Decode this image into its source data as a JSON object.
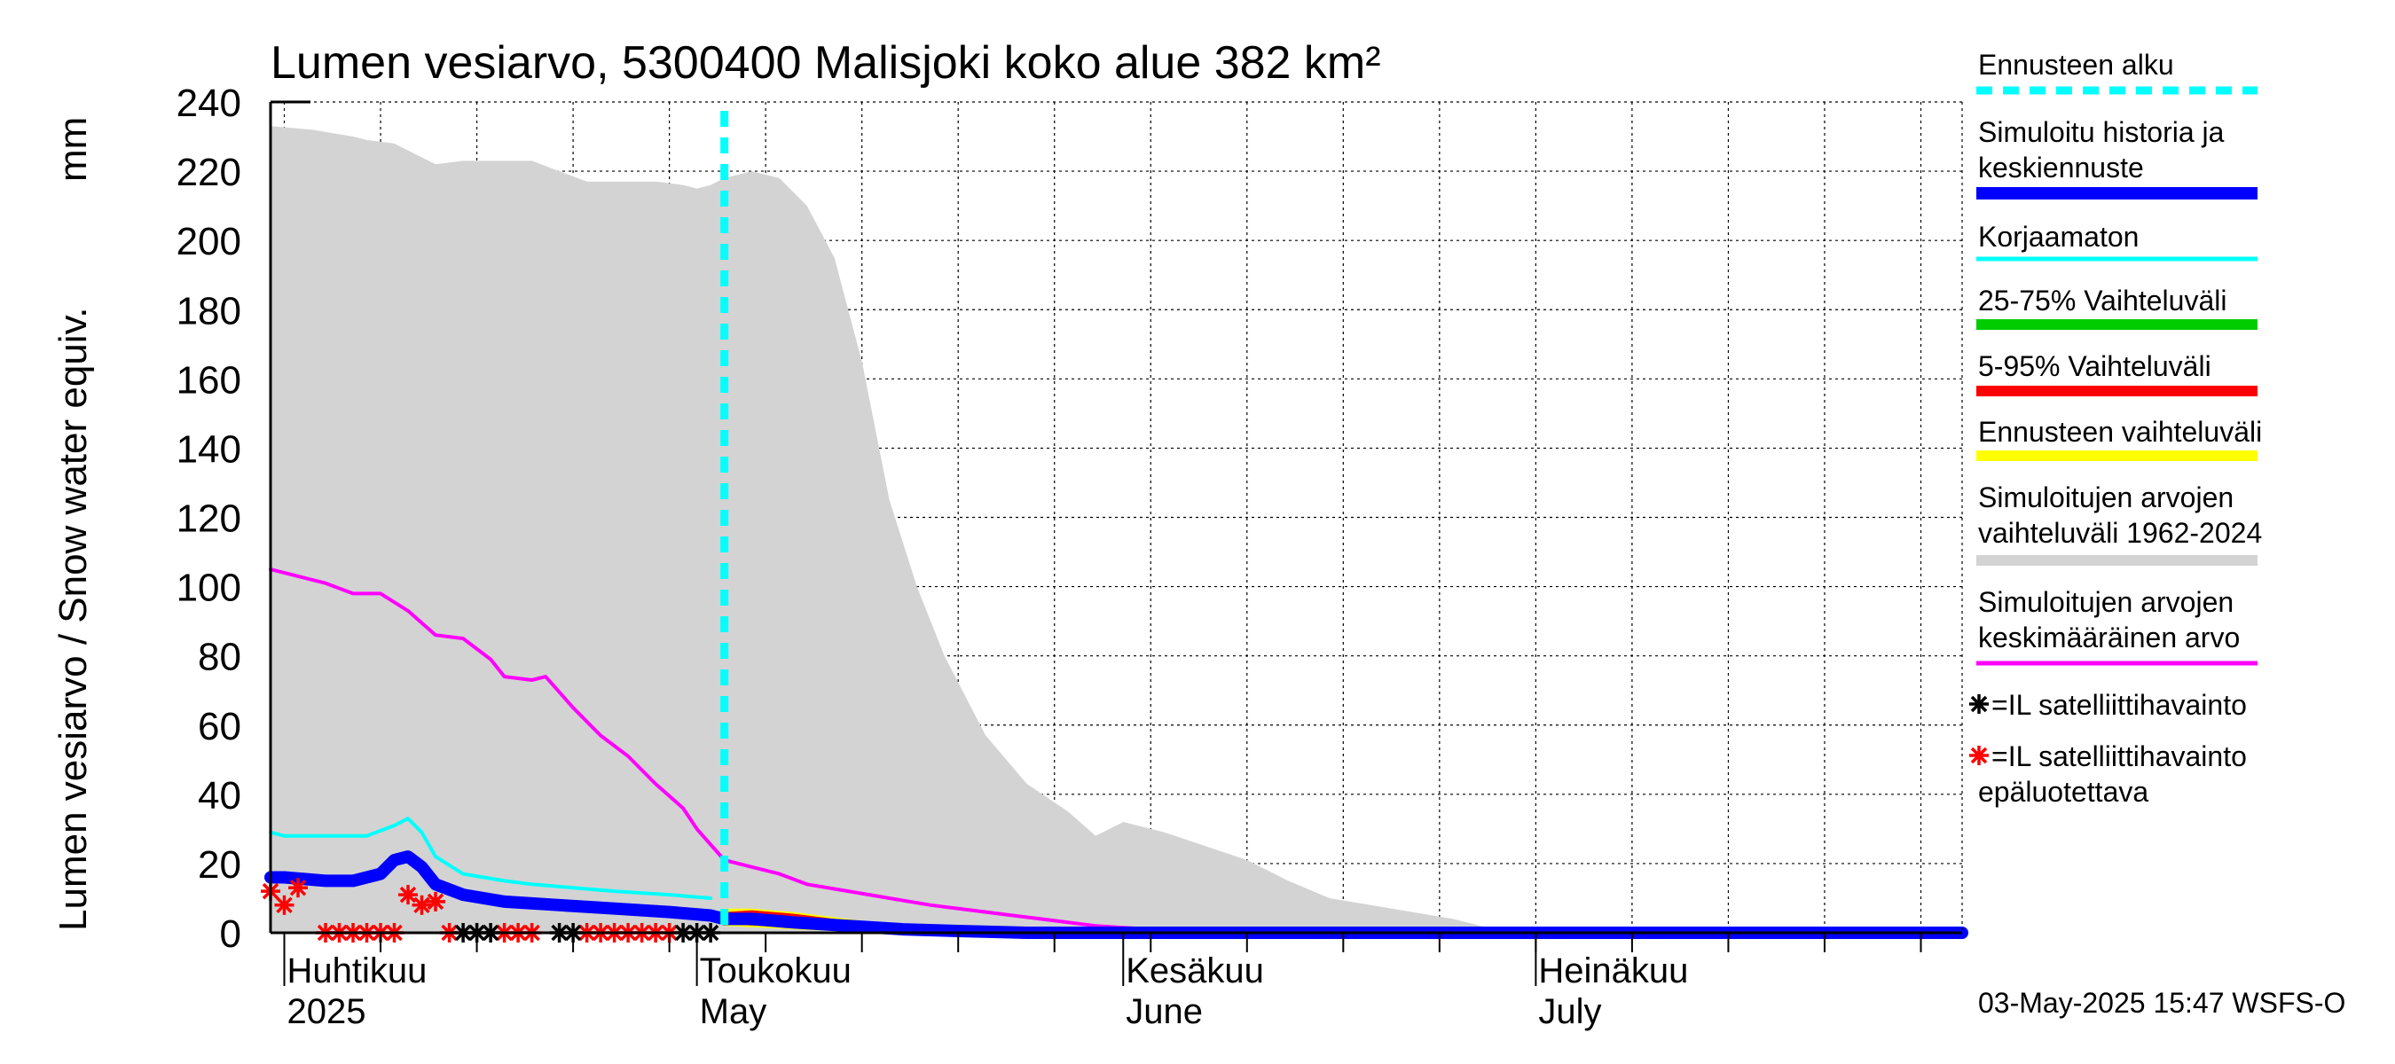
{
  "chart_data": {
    "type": "area",
    "title": "Lumen vesiarvo, 5300400 Malisjoki koko alue 382 km²",
    "ylabel": "Lumen vesiarvo / Snow water equiv.",
    "yunit": "mm",
    "ylim": [
      0,
      240
    ],
    "yticks": [
      0,
      20,
      40,
      60,
      80,
      100,
      120,
      140,
      160,
      180,
      200,
      220,
      240
    ],
    "xlim": [
      "2025-03-31",
      "2025-08-01"
    ],
    "grid": true,
    "x_labels": [
      {
        "date": "2025-04-01",
        "line1": "Huhtikuu",
        "line2": "2025"
      },
      {
        "date": "2025-05-01",
        "line1": "Toukokuu",
        "line2": "May"
      },
      {
        "date": "2025-06-01",
        "line1": "Kesäkuu",
        "line2": "June"
      },
      {
        "date": "2025-07-01",
        "line1": "Heinäkuu",
        "line2": "July"
      }
    ],
    "forecast_start": "2025-05-03",
    "series": [
      {
        "name": "Simuloitujen arvojen vaihteluväli 1962-2024",
        "kind": "band",
        "color": "#d3d3d3",
        "upper": [
          [
            "2025-03-31",
            233
          ],
          [
            "2025-04-03",
            232
          ],
          [
            "2025-04-06",
            230
          ],
          [
            "2025-04-07",
            229
          ],
          [
            "2025-04-09",
            228
          ],
          [
            "2025-04-11",
            224
          ],
          [
            "2025-04-12",
            222
          ],
          [
            "2025-04-14",
            223
          ],
          [
            "2025-04-19",
            223
          ],
          [
            "2025-04-21",
            220
          ],
          [
            "2025-04-23",
            217
          ],
          [
            "2025-04-28",
            217
          ],
          [
            "2025-04-30",
            216
          ],
          [
            "2025-05-01",
            215
          ],
          [
            "2025-05-02",
            216
          ],
          [
            "2025-05-03",
            218
          ],
          [
            "2025-05-05",
            220
          ],
          [
            "2025-05-07",
            218
          ],
          [
            "2025-05-09",
            210
          ],
          [
            "2025-05-11",
            195
          ],
          [
            "2025-05-13",
            165
          ],
          [
            "2025-05-15",
            125
          ],
          [
            "2025-05-17",
            100
          ],
          [
            "2025-05-19",
            80
          ],
          [
            "2025-05-22",
            57
          ],
          [
            "2025-05-25",
            43
          ],
          [
            "2025-05-28",
            35
          ],
          [
            "2025-05-30",
            28
          ],
          [
            "2025-06-01",
            32
          ],
          [
            "2025-06-04",
            29
          ],
          [
            "2025-06-07",
            25
          ],
          [
            "2025-06-10",
            21
          ],
          [
            "2025-06-13",
            15
          ],
          [
            "2025-06-16",
            10
          ],
          [
            "2025-06-19",
            8
          ],
          [
            "2025-06-22",
            6
          ],
          [
            "2025-06-25",
            4
          ],
          [
            "2025-06-27",
            2
          ],
          [
            "2025-06-28",
            1
          ],
          [
            "2025-07-02",
            0
          ],
          [
            "2025-08-01",
            0
          ]
        ],
        "lower": [
          [
            "2025-03-31",
            0
          ],
          [
            "2025-08-01",
            0
          ]
        ]
      },
      {
        "name": "Ennusteen vaihteluväli",
        "kind": "band",
        "color": "#ffff00",
        "upper": [
          [
            "2025-05-03",
            7
          ],
          [
            "2025-05-05",
            7
          ],
          [
            "2025-05-08",
            6
          ],
          [
            "2025-05-12",
            4
          ],
          [
            "2025-05-16",
            2
          ],
          [
            "2025-05-20",
            0.5
          ],
          [
            "2025-05-22",
            0
          ]
        ],
        "lower": [
          [
            "2025-05-03",
            2
          ],
          [
            "2025-05-08",
            1
          ],
          [
            "2025-05-14",
            0
          ],
          [
            "2025-05-22",
            0
          ]
        ]
      },
      {
        "name": "5-95% Vaihteluväli",
        "kind": "band",
        "color": "#ff0000",
        "upper": [
          [
            "2025-05-03",
            6
          ],
          [
            "2025-05-05",
            6.5
          ],
          [
            "2025-05-08",
            5.5
          ],
          [
            "2025-05-12",
            3.5
          ],
          [
            "2025-05-16",
            1.5
          ],
          [
            "2025-05-20",
            0.3
          ],
          [
            "2025-05-22",
            0
          ]
        ],
        "lower": [
          [
            "2025-05-03",
            2.5
          ],
          [
            "2025-05-08",
            1.5
          ],
          [
            "2025-05-14",
            0.2
          ],
          [
            "2025-05-22",
            0
          ]
        ]
      },
      {
        "name": "25-75% Vaihteluväli",
        "kind": "band",
        "color": "#00cc00",
        "upper": [
          [
            "2025-05-03",
            4.5
          ],
          [
            "2025-05-08",
            4
          ],
          [
            "2025-05-12",
            2.5
          ],
          [
            "2025-05-16",
            1
          ],
          [
            "2025-05-20",
            0
          ]
        ],
        "lower": [
          [
            "2025-05-03",
            3
          ],
          [
            "2025-05-08",
            2
          ],
          [
            "2025-05-12",
            1
          ],
          [
            "2025-05-20",
            0
          ]
        ]
      },
      {
        "name": "Simuloitujen arvojen keskimääräinen arvo",
        "kind": "line",
        "color": "#ff00ff",
        "points": [
          [
            "2025-03-31",
            105
          ],
          [
            "2025-04-02",
            103
          ],
          [
            "2025-04-04",
            101
          ],
          [
            "2025-04-06",
            98
          ],
          [
            "2025-04-08",
            98
          ],
          [
            "2025-04-10",
            93
          ],
          [
            "2025-04-12",
            86
          ],
          [
            "2025-04-14",
            85
          ],
          [
            "2025-04-16",
            79
          ],
          [
            "2025-04-17",
            74
          ],
          [
            "2025-04-19",
            73
          ],
          [
            "2025-04-20",
            74
          ],
          [
            "2025-04-22",
            65
          ],
          [
            "2025-04-24",
            57
          ],
          [
            "2025-04-26",
            51
          ],
          [
            "2025-04-28",
            43
          ],
          [
            "2025-04-30",
            36
          ],
          [
            "2025-05-01",
            30
          ],
          [
            "2025-05-03",
            21
          ],
          [
            "2025-05-05",
            19
          ],
          [
            "2025-05-07",
            17
          ],
          [
            "2025-05-09",
            14
          ],
          [
            "2025-05-12",
            12
          ],
          [
            "2025-05-15",
            10
          ],
          [
            "2025-05-18",
            8
          ],
          [
            "2025-05-22",
            6
          ],
          [
            "2025-05-26",
            4
          ],
          [
            "2025-05-30",
            2
          ],
          [
            "2025-06-03",
            1
          ],
          [
            "2025-06-08",
            0.3
          ],
          [
            "2025-06-12",
            0
          ],
          [
            "2025-08-01",
            0
          ]
        ]
      },
      {
        "name": "Korjaamaton",
        "kind": "line",
        "color": "#00ffff",
        "points": [
          [
            "2025-03-31",
            29
          ],
          [
            "2025-04-01",
            28
          ],
          [
            "2025-04-05",
            28
          ],
          [
            "2025-04-07",
            28
          ],
          [
            "2025-04-09",
            31
          ],
          [
            "2025-04-10",
            33
          ],
          [
            "2025-04-11",
            29
          ],
          [
            "2025-04-12",
            22
          ],
          [
            "2025-04-14",
            17
          ],
          [
            "2025-04-17",
            15
          ],
          [
            "2025-04-19",
            14
          ],
          [
            "2025-04-22",
            13
          ],
          [
            "2025-04-25",
            12
          ],
          [
            "2025-04-29",
            11
          ],
          [
            "2025-05-02",
            10
          ]
        ]
      },
      {
        "name": "Simuloitu historia ja keskiennuste",
        "kind": "line",
        "color": "#0000ff",
        "points": [
          [
            "2025-03-31",
            16
          ],
          [
            "2025-04-01",
            16
          ],
          [
            "2025-04-04",
            15
          ],
          [
            "2025-04-06",
            15
          ],
          [
            "2025-04-08",
            17
          ],
          [
            "2025-04-09",
            21
          ],
          [
            "2025-04-10",
            22
          ],
          [
            "2025-04-11",
            19
          ],
          [
            "2025-04-12",
            14
          ],
          [
            "2025-04-14",
            11
          ],
          [
            "2025-04-17",
            9
          ],
          [
            "2025-04-21",
            8
          ],
          [
            "2025-04-25",
            7
          ],
          [
            "2025-04-29",
            6
          ],
          [
            "2025-05-02",
            5
          ],
          [
            "2025-05-03",
            4
          ],
          [
            "2025-05-05",
            4
          ],
          [
            "2025-05-08",
            3
          ],
          [
            "2025-05-12",
            2
          ],
          [
            "2025-05-16",
            1
          ],
          [
            "2025-05-20",
            0.5
          ],
          [
            "2025-05-25",
            0
          ],
          [
            "2025-08-01",
            0
          ]
        ]
      }
    ],
    "observations_reliable": {
      "name": "=IL satelliittihavainto",
      "color": "#000000",
      "points": [
        [
          "2025-04-14",
          0
        ],
        [
          "2025-04-15",
          0
        ],
        [
          "2025-04-16",
          0
        ],
        [
          "2025-04-21",
          0
        ],
        [
          "2025-04-22",
          0
        ],
        [
          "2025-04-30",
          0
        ],
        [
          "2025-05-01",
          0
        ],
        [
          "2025-05-02",
          0
        ]
      ]
    },
    "observations_unreliable": {
      "name": "=IL satelliittihavainto epäluotettava",
      "color": "#ff0000",
      "points": [
        [
          "2025-03-31",
          12
        ],
        [
          "2025-04-01",
          8
        ],
        [
          "2025-04-02",
          13
        ],
        [
          "2025-04-04",
          0
        ],
        [
          "2025-04-05",
          0
        ],
        [
          "2025-04-06",
          0
        ],
        [
          "2025-04-07",
          0
        ],
        [
          "2025-04-08",
          0
        ],
        [
          "2025-04-09",
          0
        ],
        [
          "2025-04-10",
          11
        ],
        [
          "2025-04-11",
          8
        ],
        [
          "2025-04-12",
          9
        ],
        [
          "2025-04-13",
          0
        ],
        [
          "2025-04-17",
          0
        ],
        [
          "2025-04-18",
          0
        ],
        [
          "2025-04-19",
          0
        ],
        [
          "2025-04-23",
          0
        ],
        [
          "2025-04-24",
          0
        ],
        [
          "2025-04-25",
          0
        ],
        [
          "2025-04-26",
          0
        ],
        [
          "2025-04-27",
          0
        ],
        [
          "2025-04-28",
          0
        ],
        [
          "2025-04-29",
          0
        ]
      ]
    }
  },
  "legend": {
    "forecast_start": "Ennusteen alku",
    "simulated_line1": "Simuloitu historia ja",
    "simulated_line2": "keskiennuste",
    "uncorrected": "Korjaamaton",
    "range_25_75": "25-75% Vaihteluväli",
    "range_5_95": "5-95% Vaihteluväli",
    "forecast_range": "Ennusteen vaihteluväli",
    "sim_range_line1": "Simuloitujen arvojen",
    "sim_range_line2": "vaihteluväli 1962-2024",
    "sim_mean_line1": "Simuloitujen arvojen",
    "sim_mean_line2": "keskimääräinen arvo",
    "sat_obs": "=IL satelliittihavainto",
    "sat_obs_unrel_line1": "=IL satelliittihavainto",
    "sat_obs_unrel_line2": "epäluotettava"
  },
  "footer": "03-May-2025 15:47 WSFS-O"
}
